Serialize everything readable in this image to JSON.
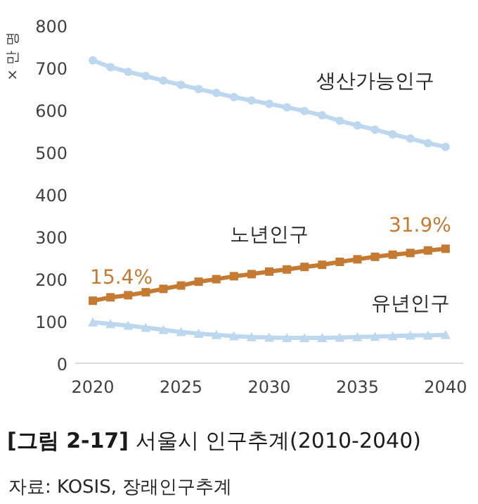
{
  "chart_data": {
    "type": "line",
    "title": "[그림 2-17] 서울시 인구추계(2010-2040)",
    "ylabel": "× 만 명",
    "x": [
      2020,
      2021,
      2022,
      2023,
      2024,
      2025,
      2026,
      2027,
      2028,
      2029,
      2030,
      2031,
      2032,
      2033,
      2034,
      2035,
      2036,
      2037,
      2038,
      2039,
      2040
    ],
    "xlim": [
      2019,
      2041
    ],
    "xticks": [
      2020,
      2025,
      2030,
      2035,
      2040
    ],
    "ylim": [
      0,
      800
    ],
    "yticks": [
      0,
      100,
      200,
      300,
      400,
      500,
      600,
      700,
      800
    ],
    "grid": false,
    "line_style": "solid",
    "series": [
      {
        "name": "생산가능인구",
        "color": "#bdd7ee",
        "marker": "circle",
        "values": [
          717,
          701,
          690,
          680,
          669,
          659,
          649,
          640,
          630,
          622,
          614,
          606,
          597,
          587,
          574,
          563,
          553,
          542,
          532,
          521,
          512
        ]
      },
      {
        "name": "노년인구",
        "color": "#c47a33",
        "marker": "square",
        "values": [
          148,
          156,
          161,
          168,
          176,
          184,
          193,
          199,
          206,
          211,
          217,
          222,
          228,
          233,
          240,
          246,
          252,
          257,
          261,
          267,
          271
        ]
      },
      {
        "name": "유년인구",
        "color": "#bdd7ee",
        "marker": "triangle",
        "values": [
          97,
          93,
          89,
          84,
          79,
          74,
          70,
          67,
          64,
          62,
          61,
          60,
          60,
          60,
          61,
          62,
          63,
          64,
          66,
          66,
          67
        ]
      }
    ],
    "annotations": [
      {
        "text": "15.4%",
        "x": 2020,
        "y": 148
      },
      {
        "text": "31.9%",
        "x": 2040,
        "y": 271
      },
      "자료: KOSIS, 장래인구추계"
    ]
  }
}
